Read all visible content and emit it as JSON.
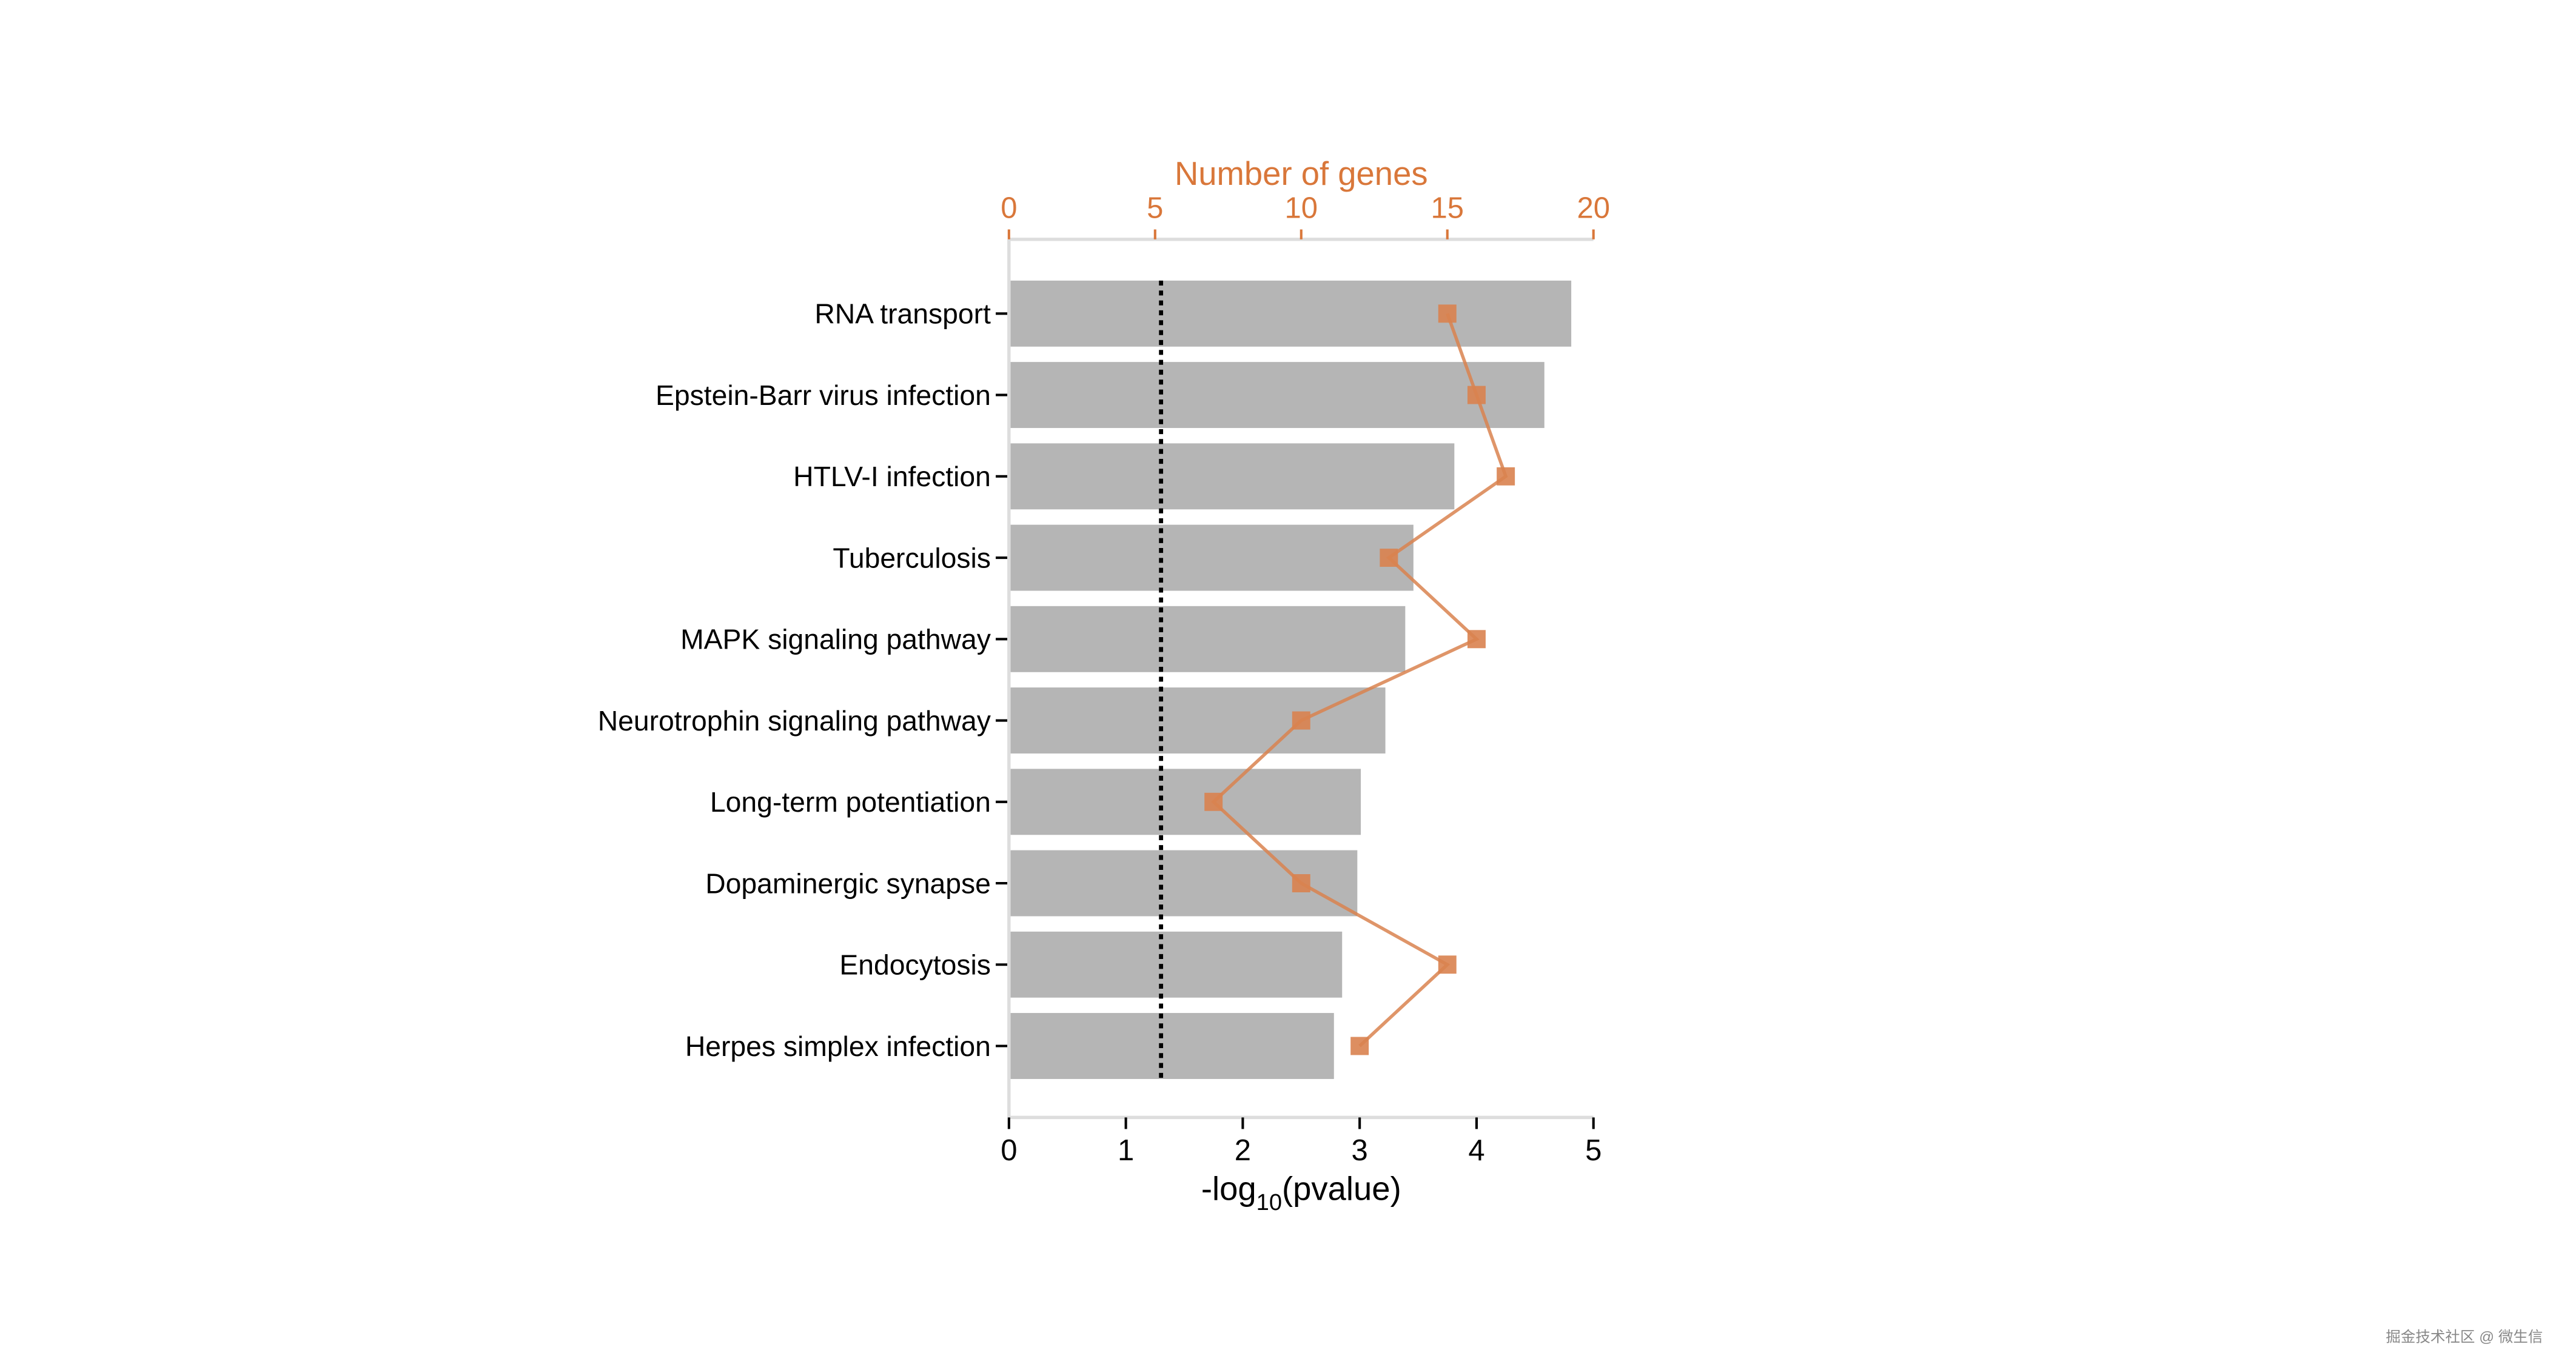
{
  "chart_data": {
    "type": "bar",
    "orientation": "horizontal",
    "categories": [
      "RNA transport",
      "Epstein-Barr virus infection",
      "HTLV-I infection",
      "Tuberculosis",
      "MAPK signaling pathway",
      "Neurotrophin signaling pathway",
      "Long-term potentiation",
      "Dopaminergic synapse",
      "Endocytosis",
      "Herpes simplex infection"
    ],
    "series": [
      {
        "type": "bar",
        "axis": "bottom",
        "values": [
          4.81,
          4.58,
          3.81,
          3.46,
          3.39,
          3.22,
          3.01,
          2.98,
          2.85,
          2.78
        ],
        "color": "#b5b5b5"
      },
      {
        "type": "line",
        "marker": "square",
        "axis": "top",
        "values": [
          15,
          16,
          17,
          13,
          16,
          10,
          7,
          10,
          15,
          12
        ],
        "color": "#d9824f"
      }
    ],
    "xlabel_main": "-log",
    "xlabel_sub": "10",
    "xlabel_rest": "(pvalue)",
    "xlim": [
      0,
      5
    ],
    "xticks": [
      "0",
      "1",
      "2",
      "3",
      "4",
      "5"
    ],
    "top_axis_label": "Number of genes",
    "top_xlim": [
      0,
      20
    ],
    "top_xticks": [
      "0",
      "5",
      "10",
      "15",
      "20"
    ],
    "top_axis_color": "#d9773a",
    "reference_line": {
      "x": 1.301,
      "style": "dotted",
      "color": "#000000"
    },
    "grid": false
  },
  "watermark": "掘金技术社区 @ 微生信"
}
